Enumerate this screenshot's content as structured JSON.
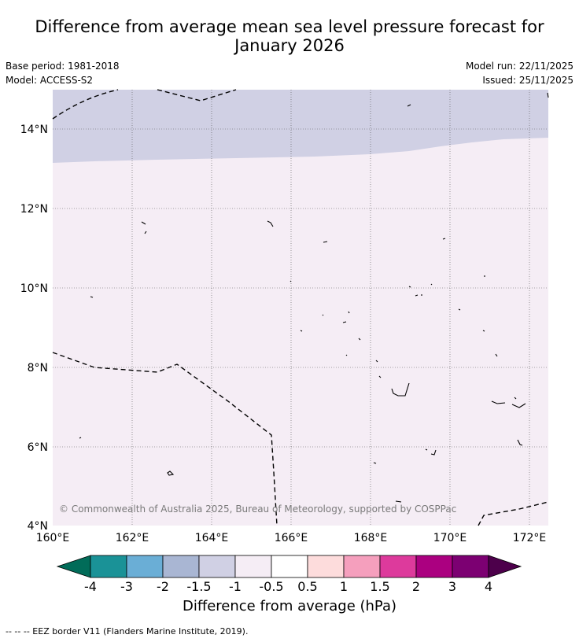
{
  "title_line1": "Difference from average mean sea level pressure forecast for",
  "title_line2": "January 2026",
  "meta_left": [
    "Base period: 1981-2018",
    "Model: ACCESS-S2"
  ],
  "meta_right": [
    "Model run: 22/11/2025",
    "Issued: 25/11/2025"
  ],
  "map": {
    "lat_labels": [
      "14°N",
      "12°N",
      "10°N",
      "8°N",
      "6°N",
      "4°N"
    ],
    "lon_labels": [
      "160°E",
      "162°E",
      "164°E",
      "166°E",
      "168°E",
      "170°E",
      "172°E"
    ],
    "lat_range": [
      4,
      15
    ],
    "lon_range": [
      160,
      172.5
    ],
    "fill_colors": {
      "minus_1_to_minus_1_5": "#d0d0e4",
      "minus_0_5_to_minus_1": "#f5edf5"
    },
    "copyright": "© Commonwealth of Australia 2025, Bureau of Meteorology, supported by COSPPac"
  },
  "colorbar": {
    "labels": [
      "-4",
      "-3",
      "-2",
      "-1.5",
      "-1",
      "-0.5",
      "0.5",
      "1",
      "1.5",
      "2",
      "3",
      "4"
    ],
    "colors": [
      "#1a9297",
      "#6aaed6",
      "#a9b6d3",
      "#d0d0e4",
      "#f5edf5",
      "#ffffff",
      "#fddcdc",
      "#f59fbd",
      "#dd3a9c",
      "#ab0080",
      "#7c0072"
    ],
    "low_extend_color": "#016c59",
    "high_extend_color": "#4d004b",
    "title": "Difference from average (hPa)"
  },
  "footer": "--  --  -- EEZ border V11 (Flanders Marine Institute, 2019)."
}
